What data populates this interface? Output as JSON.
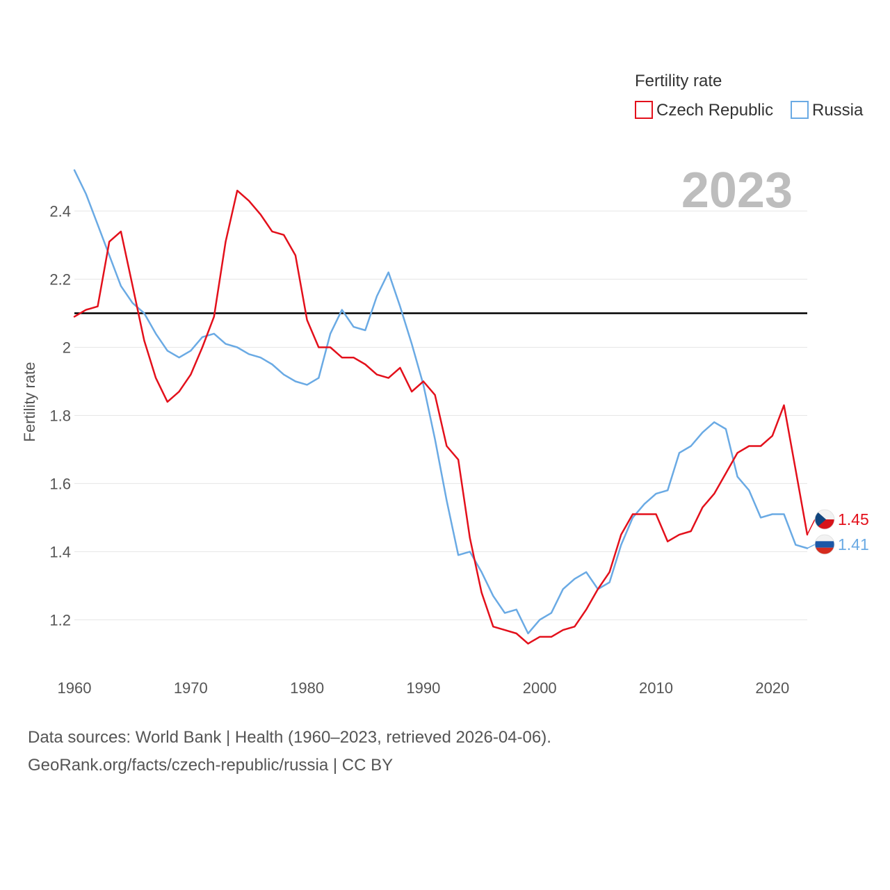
{
  "chart_data": {
    "type": "line",
    "title": "",
    "ylabel": "Fertility rate",
    "xlabel": "",
    "xlim": [
      1960,
      2023
    ],
    "ylim": [
      1.06,
      2.55
    ],
    "x_ticks": [
      "1960",
      "1970",
      "1980",
      "1990",
      "2000",
      "2010",
      "2020"
    ],
    "y_ticks": [
      "1.2",
      "1.4",
      "1.6",
      "1.8",
      "2",
      "2.2",
      "2.4"
    ],
    "grid": true,
    "reference_line": 2.1,
    "year_label": "2023",
    "legend": {
      "title": "Fertility rate",
      "position": "top-right",
      "entries": [
        "Czech Republic",
        "Russia"
      ]
    },
    "x": [
      1960,
      1961,
      1962,
      1963,
      1964,
      1965,
      1966,
      1967,
      1968,
      1969,
      1970,
      1971,
      1972,
      1973,
      1974,
      1975,
      1976,
      1977,
      1978,
      1979,
      1980,
      1981,
      1982,
      1983,
      1984,
      1985,
      1986,
      1987,
      1988,
      1989,
      1990,
      1991,
      1992,
      1993,
      1994,
      1995,
      1996,
      1997,
      1998,
      1999,
      2000,
      2001,
      2002,
      2003,
      2004,
      2005,
      2006,
      2007,
      2008,
      2009,
      2010,
      2011,
      2012,
      2013,
      2014,
      2015,
      2016,
      2017,
      2018,
      2019,
      2020,
      2021,
      2022,
      2023
    ],
    "series": [
      {
        "name": "Czech Republic",
        "color": "#e3101b",
        "flag": "czech-republic-flag-icon",
        "end_label": "1.45",
        "values": [
          2.09,
          2.11,
          2.12,
          2.31,
          2.34,
          2.18,
          2.02,
          1.91,
          1.84,
          1.87,
          1.92,
          2.0,
          2.09,
          2.31,
          2.46,
          2.43,
          2.39,
          2.34,
          2.33,
          2.27,
          2.08,
          2.0,
          2.0,
          1.97,
          1.97,
          1.95,
          1.92,
          1.91,
          1.94,
          1.87,
          1.9,
          1.86,
          1.71,
          1.67,
          1.44,
          1.28,
          1.18,
          1.17,
          1.16,
          1.13,
          1.15,
          1.15,
          1.17,
          1.18,
          1.23,
          1.29,
          1.34,
          1.45,
          1.51,
          1.51,
          1.51,
          1.43,
          1.45,
          1.46,
          1.53,
          1.57,
          1.63,
          1.69,
          1.71,
          1.71,
          1.74,
          1.83,
          1.64,
          1.45
        ]
      },
      {
        "name": "Russia",
        "color": "#6aaae4",
        "flag": "russia-flag-icon",
        "end_label": "1.41",
        "values": [
          2.52,
          2.45,
          2.36,
          2.27,
          2.18,
          2.13,
          2.1,
          2.04,
          1.99,
          1.97,
          1.99,
          2.03,
          2.04,
          2.01,
          2.0,
          1.98,
          1.97,
          1.95,
          1.92,
          1.9,
          1.89,
          1.91,
          2.04,
          2.11,
          2.06,
          2.05,
          2.15,
          2.22,
          2.12,
          2.01,
          1.89,
          1.73,
          1.55,
          1.39,
          1.4,
          1.34,
          1.27,
          1.22,
          1.23,
          1.16,
          1.2,
          1.22,
          1.29,
          1.32,
          1.34,
          1.29,
          1.31,
          1.42,
          1.5,
          1.54,
          1.57,
          1.58,
          1.69,
          1.71,
          1.75,
          1.78,
          1.76,
          1.62,
          1.58,
          1.5,
          1.51,
          1.51,
          1.42,
          1.41
        ]
      }
    ],
    "source_lines": [
      "Data sources: World Bank | Health (1960–2023, retrieved 2026-04-06).",
      "GeoRank.org/facts/czech-republic/russia | CC BY"
    ]
  }
}
